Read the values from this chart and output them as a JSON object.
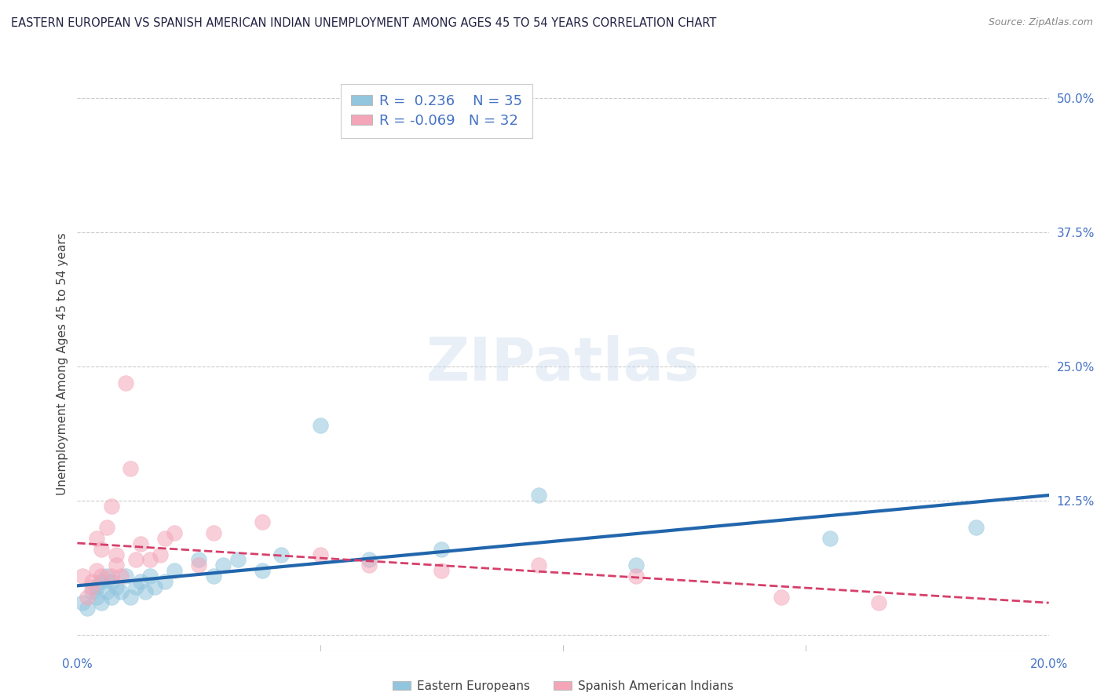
{
  "title": "EASTERN EUROPEAN VS SPANISH AMERICAN INDIAN UNEMPLOYMENT AMONG AGES 45 TO 54 YEARS CORRELATION CHART",
  "source": "Source: ZipAtlas.com",
  "ylabel": "Unemployment Among Ages 45 to 54 years",
  "xlim": [
    0.0,
    0.2
  ],
  "ylim": [
    -0.015,
    0.52
  ],
  "xticks": [
    0.0,
    0.05,
    0.1,
    0.15,
    0.2
  ],
  "xticklabels": [
    "0.0%",
    "",
    "",
    "",
    "20.0%"
  ],
  "yticks_right": [
    0.0,
    0.125,
    0.25,
    0.375,
    0.5
  ],
  "ytick_right_labels": [
    "",
    "12.5%",
    "25.0%",
    "37.5%",
    "50.0%"
  ],
  "grid_color": "#cccccc",
  "background_color": "#ffffff",
  "watermark": "ZIPatlas",
  "legend_r1": "R =  0.236",
  "legend_n1": "N = 35",
  "legend_r2": "R = -0.069",
  "legend_n2": "N = 32",
  "blue_color": "#92c5de",
  "pink_color": "#f4a6b8",
  "blue_line_color": "#2166ac",
  "pink_line_color": "#d63f6a",
  "blue_x": [
    0.001,
    0.002,
    0.003,
    0.004,
    0.004,
    0.005,
    0.005,
    0.006,
    0.006,
    0.007,
    0.007,
    0.008,
    0.009,
    0.01,
    0.011,
    0.012,
    0.013,
    0.014,
    0.015,
    0.016,
    0.018,
    0.02,
    0.025,
    0.028,
    0.03,
    0.033,
    0.038,
    0.042,
    0.05,
    0.06,
    0.075,
    0.095,
    0.115,
    0.155,
    0.185
  ],
  "blue_y": [
    0.03,
    0.025,
    0.04,
    0.035,
    0.045,
    0.03,
    0.05,
    0.04,
    0.055,
    0.035,
    0.05,
    0.045,
    0.04,
    0.055,
    0.035,
    0.045,
    0.05,
    0.04,
    0.055,
    0.045,
    0.05,
    0.06,
    0.07,
    0.055,
    0.065,
    0.07,
    0.06,
    0.075,
    0.195,
    0.07,
    0.08,
    0.13,
    0.065,
    0.09,
    0.1
  ],
  "pink_x": [
    0.001,
    0.002,
    0.003,
    0.003,
    0.004,
    0.004,
    0.005,
    0.005,
    0.006,
    0.007,
    0.007,
    0.008,
    0.008,
    0.009,
    0.01,
    0.011,
    0.012,
    0.013,
    0.015,
    0.017,
    0.018,
    0.02,
    0.025,
    0.028,
    0.038,
    0.05,
    0.06,
    0.075,
    0.095,
    0.115,
    0.145,
    0.165
  ],
  "pink_y": [
    0.055,
    0.035,
    0.05,
    0.045,
    0.06,
    0.09,
    0.055,
    0.08,
    0.1,
    0.055,
    0.12,
    0.065,
    0.075,
    0.055,
    0.235,
    0.155,
    0.07,
    0.085,
    0.07,
    0.075,
    0.09,
    0.095,
    0.065,
    0.095,
    0.105,
    0.075,
    0.065,
    0.06,
    0.065,
    0.055,
    0.035,
    0.03
  ]
}
